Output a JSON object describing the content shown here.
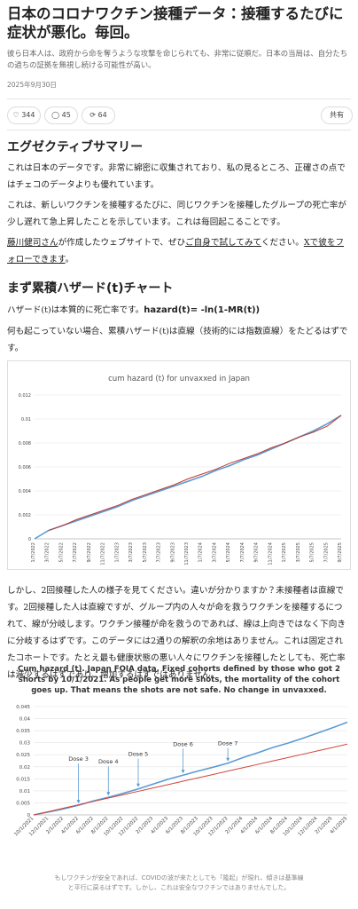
{
  "header": {
    "title": "日本のコロナワクチン接種データ：接種するたびに症状が悪化。毎回。",
    "subtitle": "彼ら日本人は、政府から命を奪うような攻撃を命じられても、非常に従順だ。日本の当局は、自分たちの過ちの証拠を無視し続ける可能性が高い。",
    "date": "2025年9月30日"
  },
  "stats": {
    "likes": 344,
    "comments": 45,
    "restacks": 64,
    "share": "共有"
  },
  "heading1": "エグゼクティブサマリー",
  "paragraph1": "これは日本のデータです。非常に綿密に収集されており、私の見るところ、正確さの点ではチェコのデータよりも優れています。",
  "paragraph2": "これは、新しいワクチンを接種するたびに、同じワクチンを接種したグループの死亡率が少し遅れて急上昇したことを示しています。これは毎回起こることです。",
  "paragraph3": [
    "藤川健司さん",
    "が作成したウェブサイトで、ぜひ",
    "ご自身で試してみて",
    "ください。",
    "Xで彼をフォローできます",
    "。"
  ],
  "heading2": "まず累積ハザード(t)チャート",
  "paragraph4": [
    "ハザード(t)は本質的に死亡率です。",
    "hazard(t)= -ln(1-MR(t))"
  ],
  "paragraph5": "何も起こっていない場合、累積ハザード(t)は直線（技術的には指数直線）をたどるはずです。",
  "figures": [
    {
      "type": "line",
      "title": "cum hazard (t) for unvaxxed in Japan",
      "categories": [
        "1/7/2022",
        "3/7/2022",
        "5/7/2022",
        "7/7/2022",
        "9/7/2022",
        "11/7/2022",
        "1/7/2023",
        "3/7/2023",
        "5/7/2023",
        "7/7/2023",
        "9/7/2023",
        "11/7/2023",
        "1/7/2024",
        "3/7/2024",
        "5/7/2024",
        "7/7/2024",
        "9/7/2024",
        "11/7/2024",
        "1/7/2025",
        "3/7/2025",
        "5/7/2025",
        "7/7/2025",
        "9/7/2025"
      ],
      "series": [
        {
          "color": "#5b9bd5",
          "values": [
            0,
            0.0007,
            0.0011,
            0.0015,
            0.0019,
            0.0023,
            0.0027,
            0.0032,
            0.0036,
            0.004,
            0.0044,
            0.0048,
            0.0052,
            0.0057,
            0.0061,
            0.0066,
            0.007,
            0.0075,
            0.008,
            0.0085,
            0.009,
            0.0096,
            0.0103
          ]
        },
        {
          "color": "#c0392b",
          "values": [
            null,
            0.0007,
            0.0011,
            0.0016,
            0.002,
            0.0024,
            0.0028,
            0.0033,
            0.0037,
            0.0041,
            0.0045,
            0.005,
            0.0054,
            0.0058,
            0.0063,
            0.0067,
            0.0071,
            0.0076,
            0.008,
            0.0085,
            0.0089,
            0.0094,
            0.0103
          ]
        }
      ],
      "ylim": [
        0,
        0.012
      ],
      "yticks": [
        0,
        0.002,
        0.004,
        0.006,
        0.008,
        0.01,
        0.012
      ],
      "grid": true,
      "x_label_rotation": -90
    },
    {
      "type": "line",
      "title": "Cum hazard (t). Japan FOIA data. Fixed cohorts defined by those who got 2 shorts by 10/1/2021. As people get more shots, the mortality of the cohort goes up. That means the shots are not safe. No change in unvaxxed.",
      "categories": [
        "10/1/2021",
        "12/1/2021",
        "2/1/2022",
        "4/1/2022",
        "6/1/2022",
        "8/1/2022",
        "10/1/2022",
        "12/1/2022",
        "2/1/2023",
        "4/1/2023",
        "6/1/2023",
        "8/1/2023",
        "10/1/2023",
        "12/1/2023",
        "2/1/2024",
        "4/1/2024",
        "6/1/2024",
        "8/1/2024",
        "10/1/2024",
        "12/1/2024",
        "2/1/2025",
        "4/1/2025"
      ],
      "series": [
        {
          "color": "#5b9bd5",
          "values": [
            0,
            0.0012,
            0.0025,
            0.004,
            0.0058,
            0.0073,
            0.009,
            0.0108,
            0.0128,
            0.0148,
            0.0165,
            0.0182,
            0.0198,
            0.0215,
            0.0238,
            0.0258,
            0.028,
            0.0298,
            0.0318,
            0.034,
            0.0362,
            0.0385
          ]
        },
        {
          "color": "#d0453a",
          "values": [
            0,
            0.0014,
            0.0028,
            0.0042,
            0.0056,
            0.007,
            0.0084,
            0.0098,
            0.0112,
            0.0126,
            0.014,
            0.0154,
            0.0168,
            0.0182,
            0.0196,
            0.021,
            0.0224,
            0.0238,
            0.0252,
            0.0266,
            0.028,
            0.0294
          ]
        }
      ],
      "ylim": [
        0,
        0.045
      ],
      "yticks": [
        0,
        0.005,
        0.01,
        0.015,
        0.02,
        0.025,
        0.03,
        0.035,
        0.04,
        0.045
      ],
      "grid": true,
      "x_label_rotation": -45,
      "annotations": [
        {
          "label": "Dose 3",
          "x": "4/1/2022"
        },
        {
          "label": "Dose 4",
          "x": "8/1/2022"
        },
        {
          "label": "Dose 5",
          "x": "12/1/2022"
        },
        {
          "label": "Dose 6",
          "x": "6/1/2023"
        },
        {
          "label": "Dose 7",
          "x": "12/1/2023"
        }
      ]
    }
  ],
  "paragraph6": "しかし、2回接種した人の様子を見てください。違いが分かりますか？未接種者は直線です。2回接種した人は直線ですが、グループ内の人々が命を救うワクチンを接種するにつれて、線が分岐します。ワクチン接種が命を救うのであれば、線は上向きではなく下向きに分岐するはずです。このデータには2通りの解釈の余地はありません。これは固定されたコホートです。たとえ最も健康状態の悪い人々にワクチンを接種したとしても、死亡率は減少するはずであり、増加するはずではありません。",
  "caption": "もしワクチンが安全であれば、COVIDの波が来たとしても「隆起」が現れ、傾きは基準線と平行に戻るはずです。しかし、これは安全なワクチンではありませんでした。"
}
